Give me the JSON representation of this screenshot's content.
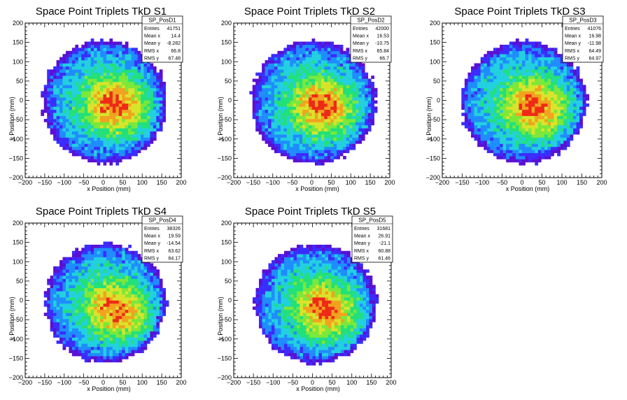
{
  "chart_data": [
    {
      "type": "heatmap",
      "title": "Space Point Triplets TkD S1",
      "xlabel": "x Position (mm)",
      "ylabel": "y Position (mm)",
      "xlim": [
        -200,
        200
      ],
      "ylim": [
        -200,
        200
      ],
      "xticks": [
        "−200",
        "−150",
        "−100",
        "−50",
        "0",
        "50",
        "100",
        "150",
        "200"
      ],
      "yticks": [
        "200",
        "150",
        "100",
        "50",
        "0",
        "−50",
        "−100",
        "−150",
        "−200"
      ],
      "stats": {
        "name": "SP_PosD1",
        "rows": [
          {
            "label": "Entries",
            "value": "41751"
          },
          {
            "label": "Mean x",
            "value": "14.4"
          },
          {
            "label": "Mean y",
            "value": "-8.282"
          },
          {
            "label": "RMS x",
            "value": "66.8"
          },
          {
            "label": "RMS y",
            "value": "67.48"
          }
        ]
      },
      "distribution": {
        "center_x": 14.4,
        "center_y": -8.3,
        "radius": 160,
        "hot_x": 55,
        "hot_y": -20
      }
    },
    {
      "type": "heatmap",
      "title": "Space Point Triplets TkD S2",
      "xlabel": "x Position (mm)",
      "ylabel": "y Position (mm)",
      "xlim": [
        -200,
        200
      ],
      "ylim": [
        -200,
        200
      ],
      "xticks": [
        "−200",
        "−150",
        "−100",
        "−50",
        "0",
        "50",
        "100",
        "150",
        "200"
      ],
      "yticks": [
        "200",
        "150",
        "100",
        "50",
        "0",
        "−50",
        "−100",
        "−150",
        "−200"
      ],
      "stats": {
        "name": "SP_PosD2",
        "rows": [
          {
            "label": "Entries",
            "value": "42000"
          },
          {
            "label": "Mean x",
            "value": "16.53"
          },
          {
            "label": "Mean y",
            "value": "-10.75"
          },
          {
            "label": "RMS x",
            "value": "65.84"
          },
          {
            "label": "RMS y",
            "value": "66.7"
          }
        ]
      },
      "distribution": {
        "center_x": 16.5,
        "center_y": -10.8,
        "radius": 160,
        "hot_x": 50,
        "hot_y": -25
      }
    },
    {
      "type": "heatmap",
      "title": "Space Point Triplets TkD S3",
      "xlabel": "x Position (mm)",
      "ylabel": "y Position (mm)",
      "xlim": [
        -200,
        200
      ],
      "ylim": [
        -200,
        200
      ],
      "xticks": [
        "−200",
        "−150",
        "−100",
        "−50",
        "0",
        "50",
        "100",
        "150",
        "200"
      ],
      "yticks": [
        "200",
        "150",
        "100",
        "50",
        "0",
        "−50",
        "−100",
        "−150",
        "−200"
      ],
      "stats": {
        "name": "SP_PosD3",
        "rows": [
          {
            "label": "Entries",
            "value": "41076"
          },
          {
            "label": "Mean x",
            "value": "16.98"
          },
          {
            "label": "Mean y",
            "value": "-11.98"
          },
          {
            "label": "RMS x",
            "value": "64.49"
          },
          {
            "label": "RMS y",
            "value": "64.97"
          }
        ]
      },
      "distribution": {
        "center_x": 17.0,
        "center_y": -12.0,
        "radius": 158,
        "hot_x": 55,
        "hot_y": -30
      }
    },
    {
      "type": "heatmap",
      "title": "Space Point Triplets TkD S4",
      "xlabel": "x Position (mm)",
      "ylabel": "y Position (mm)",
      "xlim": [
        -200,
        200
      ],
      "ylim": [
        -200,
        200
      ],
      "xticks": [
        "−200",
        "−150",
        "−100",
        "−50",
        "0",
        "50",
        "100",
        "150",
        "200"
      ],
      "yticks": [
        "200",
        "150",
        "100",
        "50",
        "0",
        "−50",
        "−100",
        "−150",
        "−200"
      ],
      "stats": {
        "name": "SP_PosD4",
        "rows": [
          {
            "label": "Entries",
            "value": "38326"
          },
          {
            "label": "Mean x",
            "value": "19.59"
          },
          {
            "label": "Mean y",
            "value": "-14.54"
          },
          {
            "label": "RMS x",
            "value": "63.62"
          },
          {
            "label": "RMS y",
            "value": "64.17"
          }
        ]
      },
      "distribution": {
        "center_x": 19.6,
        "center_y": -14.5,
        "radius": 155,
        "hot_x": 60,
        "hot_y": -40
      }
    },
    {
      "type": "heatmap",
      "title": "Space Point Triplets TkD S5",
      "xlabel": "x Position (mm)",
      "ylabel": "y Position (mm)",
      "xlim": [
        -200,
        200
      ],
      "ylim": [
        -200,
        200
      ],
      "xticks": [
        "−200",
        "−150",
        "−100",
        "−50",
        "0",
        "50",
        "100",
        "150",
        "200"
      ],
      "yticks": [
        "200",
        "150",
        "100",
        "50",
        "0",
        "−50",
        "−100",
        "−150",
        "−200"
      ],
      "stats": {
        "name": "SP_PosD5",
        "rows": [
          {
            "label": "Entries",
            "value": "31681"
          },
          {
            "label": "Mean x",
            "value": "26.91"
          },
          {
            "label": "Mean y",
            "value": "-21.1"
          },
          {
            "label": "RMS x",
            "value": "60.88"
          },
          {
            "label": "RMS y",
            "value": "61.46"
          }
        ]
      },
      "distribution": {
        "center_x": 26.9,
        "center_y": -21.1,
        "radius": 155,
        "hot_x": 55,
        "hot_y": -40
      }
    }
  ],
  "colors": {
    "palette": [
      "#5a10d2",
      "#3a2dff",
      "#1f8cff",
      "#22d0e0",
      "#22e07a",
      "#7be83a",
      "#d8e42a",
      "#f2a21e",
      "#ee2a17"
    ]
  }
}
